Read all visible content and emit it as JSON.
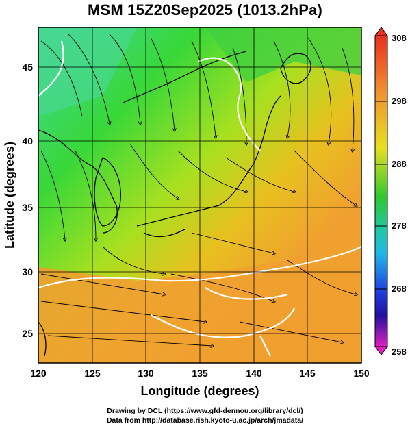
{
  "title": "MSM 15Z20Sep2025 (1013.2hPa)",
  "x_axis": {
    "label": "Longitude (degrees)",
    "range": [
      120,
      150
    ],
    "ticks": [
      "120",
      "125",
      "130",
      "135",
      "140",
      "145",
      "150"
    ]
  },
  "y_axis": {
    "label": "Latitude  (degrees)",
    "range": [
      22.4,
      47.6
    ],
    "ticks": [
      "25",
      "30",
      "35",
      "40",
      "45"
    ]
  },
  "colorbar": {
    "min": 258,
    "max": 308,
    "labels": [
      "308",
      "298",
      "288",
      "278",
      "268",
      "258"
    ]
  },
  "footer": {
    "line1": "Drawing by DCL (https://www.gfd-dennou.org/library/dcl/)",
    "line2": "Data from http://database.rish.kyoto-u.ac.jp/arch/jmadata/"
  },
  "colors": {
    "warm": "#f0a030",
    "mid": "#e0e020",
    "cool": "#40d040",
    "cold": "#40c0e0",
    "contour": "#ffffff",
    "streamline": "#000000"
  }
}
